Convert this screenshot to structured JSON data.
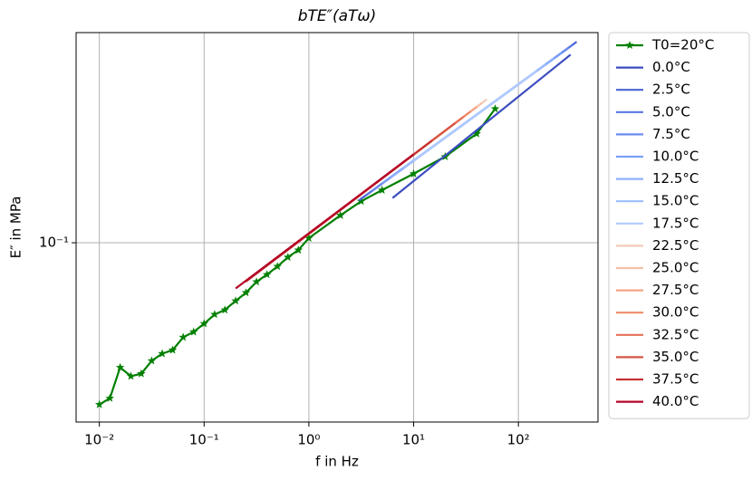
{
  "chart_data": {
    "type": "line",
    "title": "bTE″(aTω)",
    "x_label": "f in Hz",
    "y_label": "E″ in MPa",
    "log_x": true,
    "log_y": true,
    "grid": true,
    "legend": "outside right",
    "xlim": [
      0.006,
      575
    ],
    "ylim": [
      0.022,
      0.59
    ],
    "xticks": [
      {
        "value": 0.01,
        "label": "10⁻²"
      },
      {
        "value": 0.1,
        "label": "10⁻¹"
      },
      {
        "value": 1,
        "label": "10⁰"
      },
      {
        "value": 10,
        "label": "10¹"
      },
      {
        "value": 100,
        "label": "10²"
      }
    ],
    "yticks": [
      {
        "value": 0.1,
        "label": "10⁻¹"
      }
    ],
    "series": [
      {
        "name": "T0=20°C",
        "color": "#008000",
        "marker": "star",
        "x": [
          0.01,
          0.0126,
          0.0158,
          0.02,
          0.0251,
          0.0316,
          0.0398,
          0.0501,
          0.0631,
          0.0794,
          0.1,
          0.126,
          0.158,
          0.2,
          0.251,
          0.316,
          0.398,
          0.501,
          0.631,
          0.794,
          1,
          2,
          3.16,
          5,
          10,
          20,
          40,
          60
        ],
        "values": [
          0.0255,
          0.0269,
          0.0349,
          0.0324,
          0.0331,
          0.0369,
          0.0392,
          0.0404,
          0.045,
          0.0471,
          0.0505,
          0.0546,
          0.0567,
          0.0612,
          0.0656,
          0.0719,
          0.0764,
          0.0819,
          0.0885,
          0.094,
          0.104,
          0.126,
          0.142,
          0.156,
          0.179,
          0.207,
          0.251,
          0.31
        ]
      },
      {
        "name": "0.0°C",
        "color": "#3b4cc0",
        "x": [
          6.3,
          315
        ],
        "values": [
          0.146,
          0.49
        ]
      },
      {
        "name": "2.5°C",
        "color": "#4a63d3",
        "x": [
          3,
          360
        ],
        "values": [
          0.143,
          0.546
        ]
      },
      {
        "name": "5.0°C",
        "color": "#5a78e4",
        "x": [
          3.5,
          330
        ],
        "values": [
          0.149,
          0.532
        ]
      },
      {
        "name": "7.5°C",
        "color": "#6a8bef",
        "x": [
          4,
          300
        ],
        "values": [
          0.155,
          0.519
        ]
      },
      {
        "name": "10.0°C",
        "color": "#7b9ff9",
        "x": [
          5,
          260
        ],
        "values": [
          0.165,
          0.498
        ]
      },
      {
        "name": "12.5°C",
        "color": "#8db0fe",
        "x": [
          6,
          220
        ],
        "values": [
          0.173,
          0.476
        ]
      },
      {
        "name": "15.0°C",
        "color": "#9ebeff",
        "x": [
          8,
          180
        ],
        "values": [
          0.188,
          0.449
        ]
      },
      {
        "name": "17.5°C",
        "color": "#b0cbff",
        "x": [
          10,
          150
        ],
        "values": [
          0.2,
          0.427
        ]
      },
      {
        "name": "22.5°C",
        "color": "#f2cbb7",
        "x": [
          1.0,
          50
        ],
        "values": [
          0.108,
          0.336
        ]
      },
      {
        "name": "25.0°C",
        "color": "#f5c0a7",
        "x": [
          0.8,
          45
        ],
        "values": [
          0.101,
          0.326
        ]
      },
      {
        "name": "27.5°C",
        "color": "#f6a385",
        "x": [
          0.6,
          40
        ],
        "values": [
          0.093,
          0.315
        ]
      },
      {
        "name": "30.0°C",
        "color": "#f08a6c",
        "x": [
          0.5,
          35
        ],
        "values": [
          0.088,
          0.303
        ]
      },
      {
        "name": "32.5°C",
        "color": "#e57058",
        "x": [
          0.4,
          30
        ],
        "values": [
          0.083,
          0.29
        ]
      },
      {
        "name": "35.0°C",
        "color": "#d75445",
        "x": [
          0.3,
          25
        ],
        "values": [
          0.076,
          0.275
        ]
      },
      {
        "name": "37.5°C",
        "color": "#c53334",
        "x": [
          0.25,
          15
        ],
        "values": [
          0.072,
          0.237
        ]
      },
      {
        "name": "40.0°C",
        "color": "#b40426",
        "x": [
          0.2,
          10
        ],
        "values": [
          0.068,
          0.211
        ]
      }
    ]
  }
}
